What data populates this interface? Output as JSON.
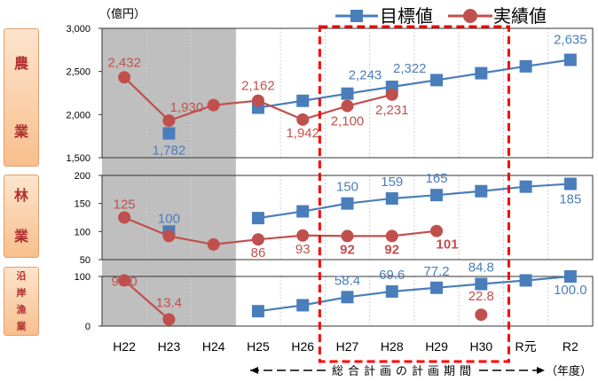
{
  "unit_label": "（億円）",
  "legend": {
    "target": "目標値",
    "actual": "実績値"
  },
  "sections": {
    "agri": {
      "chars": [
        "農",
        "業"
      ]
    },
    "forest": {
      "chars": [
        "林",
        "業"
      ]
    },
    "fish": {
      "chars": [
        "沿",
        "岸",
        "漁",
        "業"
      ]
    }
  },
  "footer": {
    "period_note": "総合計画の計画期間",
    "fy_label": "（年度）"
  },
  "colors": {
    "target": "#4a7ebb",
    "actual": "#c0504d",
    "shade": "#bfbfbf",
    "highlight": "#ff0000",
    "section_fill": "#fbd3b0"
  },
  "chart_data": {
    "type": "line",
    "categories": [
      "H22",
      "H23",
      "H24",
      "H25",
      "H26",
      "H27",
      "H28",
      "H29",
      "H30",
      "R元",
      "R2"
    ],
    "panels": [
      {
        "name": "農業",
        "ylim": [
          1500,
          3000
        ],
        "yticks": [
          "1,500",
          "2,000",
          "2,500",
          "3,000"
        ],
        "series": [
          {
            "name": "目標値",
            "values": [
              null,
              1782,
              null,
              2080,
              2160,
              2243,
              2322,
              2400,
              2480,
              2560,
              2635
            ]
          },
          {
            "name": "実績値",
            "values": [
              2432,
              1930,
              2110,
              2162,
              1942,
              2100,
              2231,
              null,
              null,
              null,
              null
            ]
          }
        ],
        "labels": {
          "target": [
            "",
            "1,782",
            "",
            "",
            "",
            "2,243",
            "2,322",
            "",
            "",
            "",
            "2,635"
          ],
          "actual": [
            "2,432",
            "1,930",
            "",
            "2,162",
            "1,942",
            "2,100",
            "2,231",
            "",
            "",
            "",
            ""
          ]
        }
      },
      {
        "name": "林業",
        "ylim": [
          50,
          200
        ],
        "yticks": [
          "50",
          "100",
          "150",
          "200"
        ],
        "series": [
          {
            "name": "目標値",
            "values": [
              null,
              100,
              null,
              124,
              136,
              150,
              159,
              165,
              172,
              180,
              185
            ]
          },
          {
            "name": "実績値",
            "values": [
              125,
              92,
              77,
              86,
              93,
              92,
              92,
              101,
              null,
              null,
              null
            ]
          }
        ],
        "labels": {
          "target": [
            "",
            "100",
            "",
            "",
            "",
            "150",
            "159",
            "165",
            "",
            "",
            "185"
          ],
          "actual": [
            "125",
            "",
            "",
            "86",
            "93",
            "92",
            "92",
            "101",
            "",
            "",
            ""
          ]
        }
      },
      {
        "name": "沿岸漁業",
        "ylim": [
          0,
          100
        ],
        "yticks": [
          "0",
          "100"
        ],
        "series": [
          {
            "name": "目標値",
            "values": [
              null,
              null,
              null,
              30.0,
              42.0,
              58.4,
              69.6,
              77.2,
              84.8,
              92.0,
              100.0
            ]
          },
          {
            "name": "実績値",
            "values": [
              92.0,
              13.4,
              null,
              null,
              null,
              null,
              null,
              null,
              22.8,
              null,
              null
            ]
          }
        ],
        "labels": {
          "target": [
            "",
            "",
            "",
            "",
            "",
            "58.4",
            "69.6",
            "77.2",
            "84.8",
            "",
            "100.0"
          ],
          "actual": [
            "92.0",
            "13.4",
            "",
            "",
            "",
            "",
            "",
            "",
            "22.8",
            "",
            ""
          ]
        }
      }
    ]
  }
}
